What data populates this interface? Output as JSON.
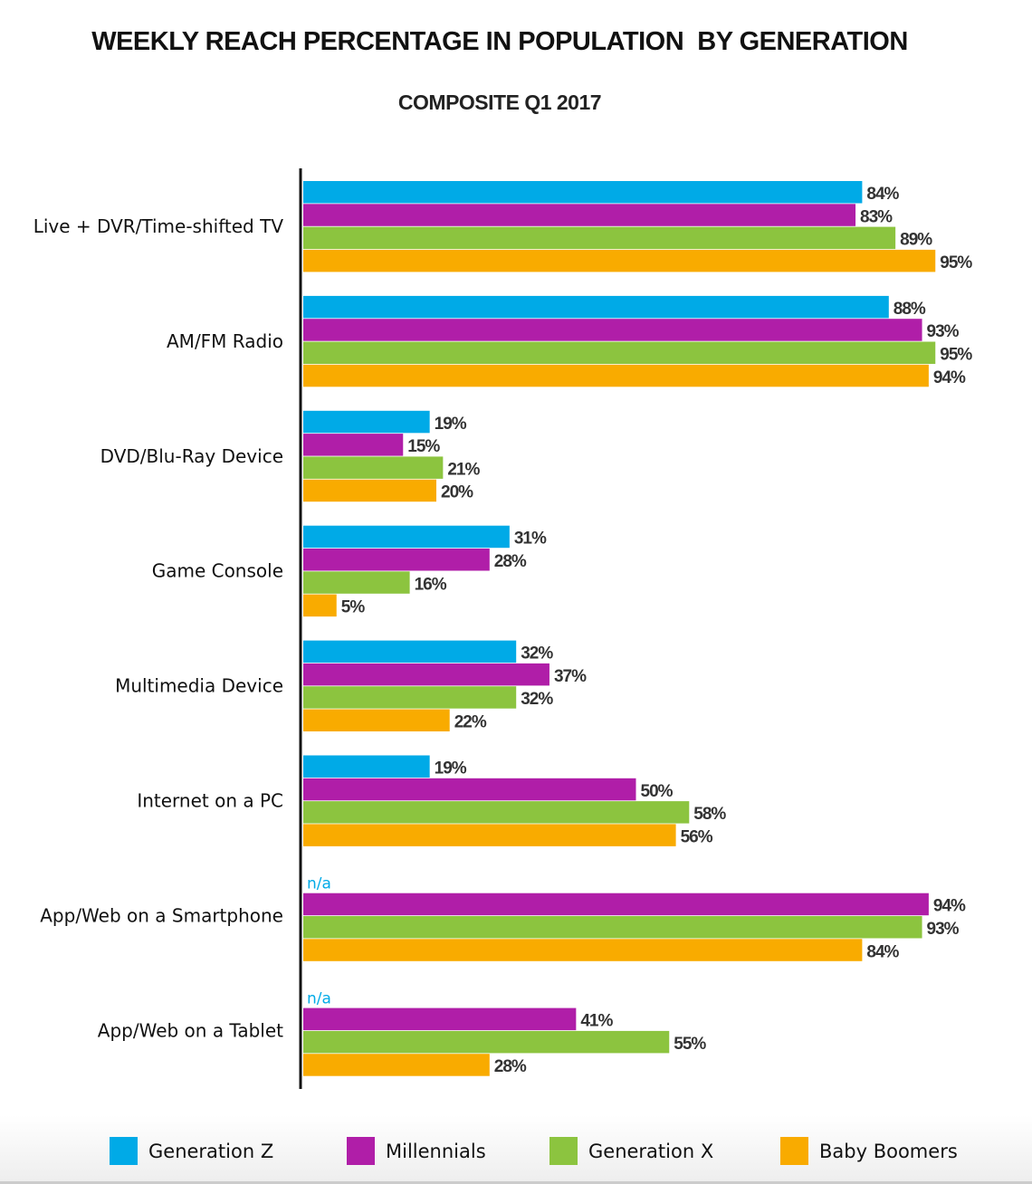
{
  "chart_data": {
    "type": "bar",
    "orientation": "horizontal",
    "title": "WEEKLY REACH PERCENTAGE IN POPULATION  BY GENERATION",
    "subtitle": "COMPOSITE Q1 2017",
    "categories": [
      "Live + DVR/Time-shifted TV",
      "AM/FM Radio",
      "DVD/Blu-Ray Device",
      "Game Console",
      "Multimedia Device",
      "Internet on a PC",
      "App/Web on a Smartphone",
      "App/Web on a Tablet"
    ],
    "series": [
      {
        "name": "Generation Z",
        "color": "#00aae7",
        "values": [
          84,
          88,
          19,
          31,
          32,
          19,
          null,
          null
        ]
      },
      {
        "name": "Millennials",
        "color": "#b01ea8",
        "values": [
          83,
          93,
          15,
          28,
          37,
          50,
          94,
          41
        ]
      },
      {
        "name": "Generation X",
        "color": "#8cc43f",
        "values": [
          89,
          95,
          21,
          16,
          32,
          58,
          93,
          55
        ]
      },
      {
        "name": "Baby Boomers",
        "color": "#f9ab00",
        "values": [
          95,
          94,
          20,
          5,
          22,
          56,
          84,
          28
        ]
      }
    ],
    "missing_label": "n/a",
    "value_suffix": "%",
    "xlim": [
      0,
      100
    ],
    "grid": false,
    "legend_position": "bottom"
  }
}
